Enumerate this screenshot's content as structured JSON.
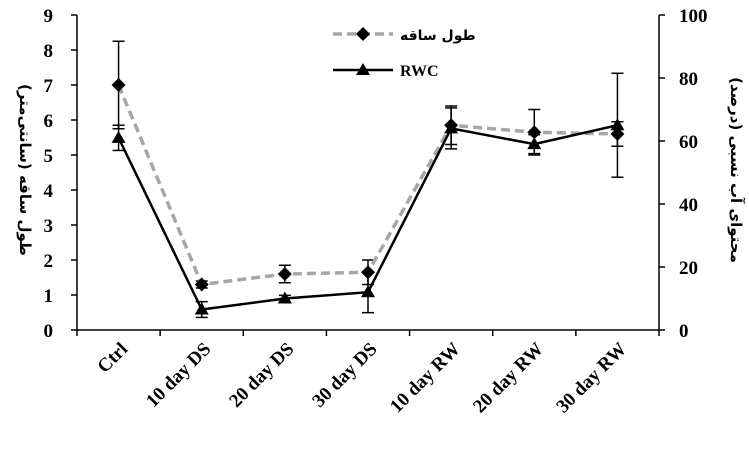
{
  "chart_data": {
    "type": "line",
    "categories": [
      "Ctrl",
      "10 day DS",
      "20 day DS",
      "30 day DS",
      "10 day  RW",
      "20 day RW",
      "30 day RW"
    ],
    "y_left": {
      "label": "طول ساقه (سانتی‌متر)",
      "range": [
        0,
        9
      ],
      "ticks": [
        0,
        1,
        2,
        3,
        4,
        5,
        6,
        7,
        8,
        9
      ]
    },
    "y_right": {
      "label": "محتوای آب نسبی (درصد)",
      "range": [
        0,
        100
      ],
      "ticks": [
        0,
        20,
        40,
        60,
        80,
        100
      ]
    },
    "legend_position": "top-center",
    "grid": false,
    "series": [
      {
        "name": "طول ساقه",
        "axis": "left",
        "style": "dashed",
        "color": "#a6a6a6",
        "marker": "diamond",
        "values": [
          7.0,
          1.3,
          1.6,
          1.65,
          5.85,
          5.65,
          5.6
        ],
        "errors": [
          1.25,
          0.1,
          0.25,
          0.35,
          0.55,
          0.65,
          0.35
        ]
      },
      {
        "name": "RWC",
        "axis": "right",
        "style": "solid",
        "color": "#000000",
        "marker": "triangle",
        "values": [
          61,
          6.5,
          10,
          12,
          64,
          59,
          65
        ],
        "errors": [
          4,
          2.5,
          1,
          6.5,
          6.5,
          3,
          16.5
        ]
      }
    ]
  }
}
